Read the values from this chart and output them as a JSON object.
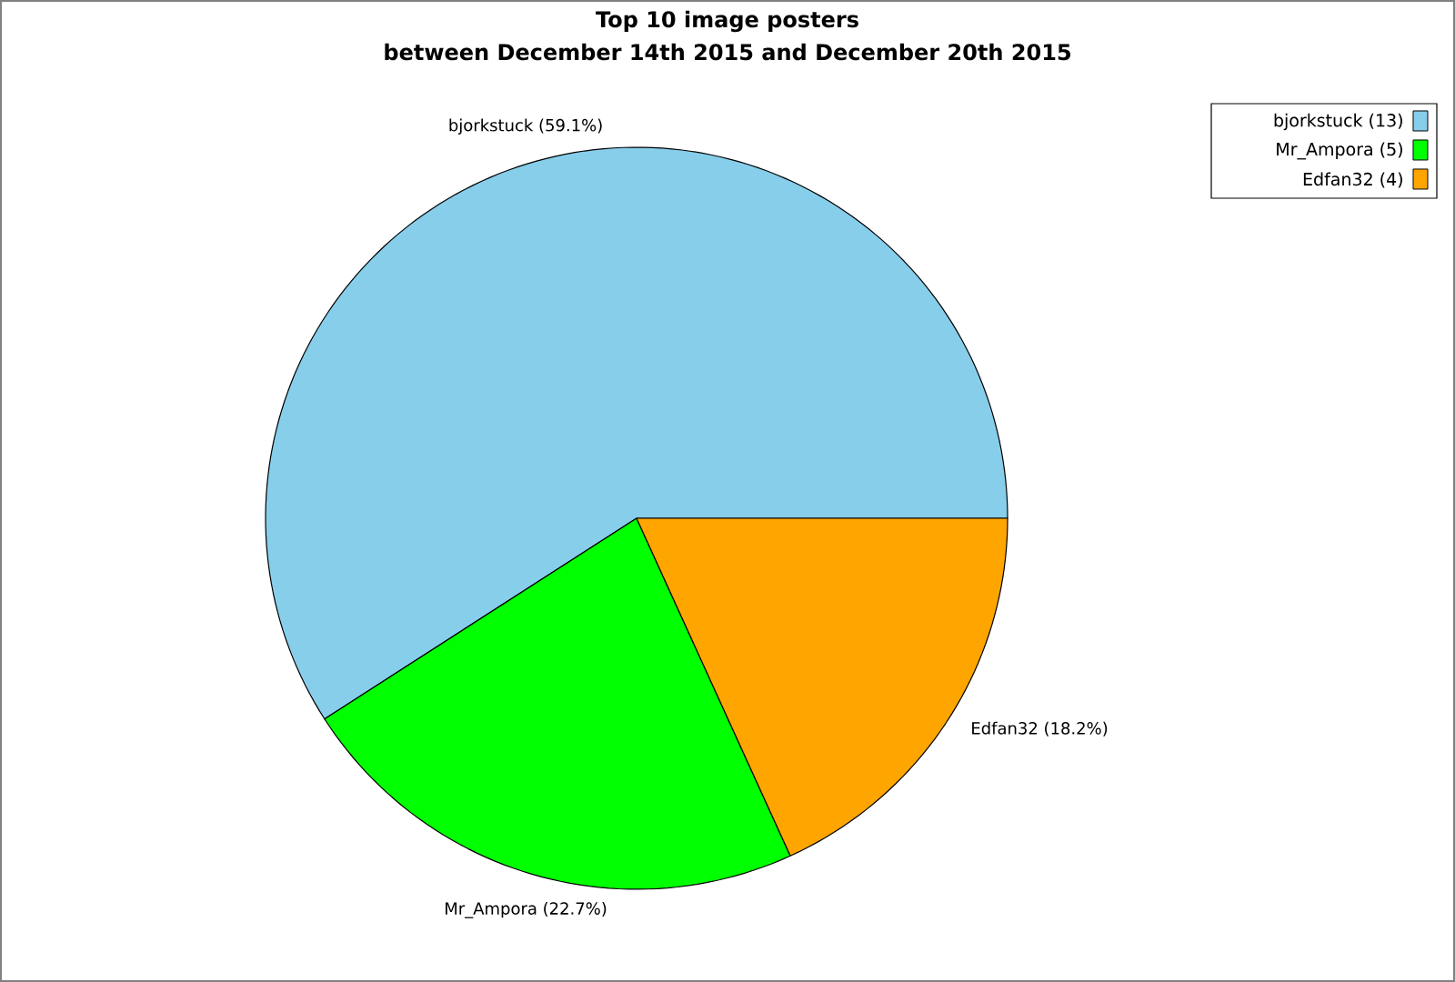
{
  "chart_data": {
    "type": "pie",
    "title": "Top 10 image posters",
    "subtitle": "between December 14th 2015 and December 20th 2015",
    "categories": [
      "bjorkstuck (13)",
      "Mr_Ampora (5)",
      "Edfan32 (4)"
    ],
    "values": [
      59.1,
      22.7,
      18.2
    ],
    "value_labels": [
      "bjorkstuck (59.1%)",
      "Mr_Ampora (22.7%)",
      "Edfan32 (18.2%)"
    ],
    "colors": [
      "#87ceeb",
      "#00ff00",
      "#ffa500"
    ],
    "legend": "top right"
  }
}
